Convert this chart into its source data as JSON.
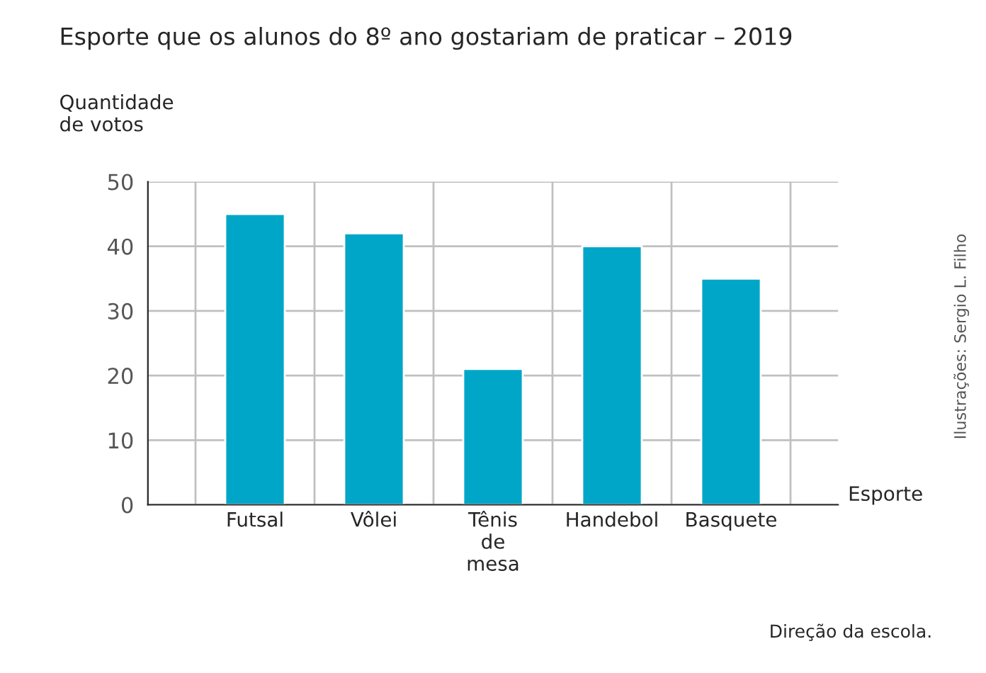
{
  "chart_data": {
    "type": "bar",
    "title": "Esporte que os alunos do 8º ano gostariam de praticar – 2019",
    "ylabel": "Quantidade\nde votos",
    "xlabel": "Esporte",
    "categories": [
      "Futsal",
      "Vôlei",
      "Tênis\nde\nmesa",
      "Handebol",
      "Basquete"
    ],
    "values": [
      45,
      42,
      21,
      40,
      35
    ],
    "color": "#00a6c8",
    "ylim": [
      0,
      50
    ],
    "yticks": [
      0,
      10,
      20,
      30,
      40,
      50
    ],
    "grid": true,
    "annotations": [
      "Direção da escola.",
      "Ilustrações: Sergio L. Filho"
    ]
  }
}
